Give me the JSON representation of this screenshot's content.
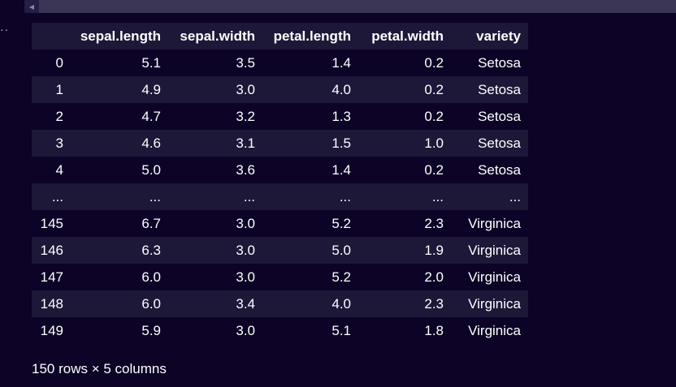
{
  "gutter": {
    "ellipsis": "··"
  },
  "table": {
    "headers": [
      "",
      "sepal.length",
      "sepal.width",
      "petal.length",
      "petal.width",
      "variety"
    ],
    "rows": [
      [
        "0",
        "5.1",
        "3.5",
        "1.4",
        "0.2",
        "Setosa"
      ],
      [
        "1",
        "4.9",
        "3.0",
        "4.0",
        "0.2",
        "Setosa"
      ],
      [
        "2",
        "4.7",
        "3.2",
        "1.3",
        "0.2",
        "Setosa"
      ],
      [
        "3",
        "4.6",
        "3.1",
        "1.5",
        "1.0",
        "Setosa"
      ],
      [
        "4",
        "5.0",
        "3.6",
        "1.4",
        "0.2",
        "Setosa"
      ],
      [
        "...",
        "...",
        "...",
        "...",
        "...",
        "..."
      ],
      [
        "145",
        "6.7",
        "3.0",
        "5.2",
        "2.3",
        "Virginica"
      ],
      [
        "146",
        "6.3",
        "3.0",
        "5.0",
        "1.9",
        "Virginica"
      ],
      [
        "147",
        "6.0",
        "3.0",
        "5.2",
        "2.0",
        "Virginica"
      ],
      [
        "148",
        "6.0",
        "3.4",
        "4.0",
        "2.3",
        "Virginica"
      ],
      [
        "149",
        "5.9",
        "3.0",
        "5.1",
        "1.8",
        "Virginica"
      ]
    ]
  },
  "footer": {
    "shape_text": "150 rows × 5 columns"
  }
}
